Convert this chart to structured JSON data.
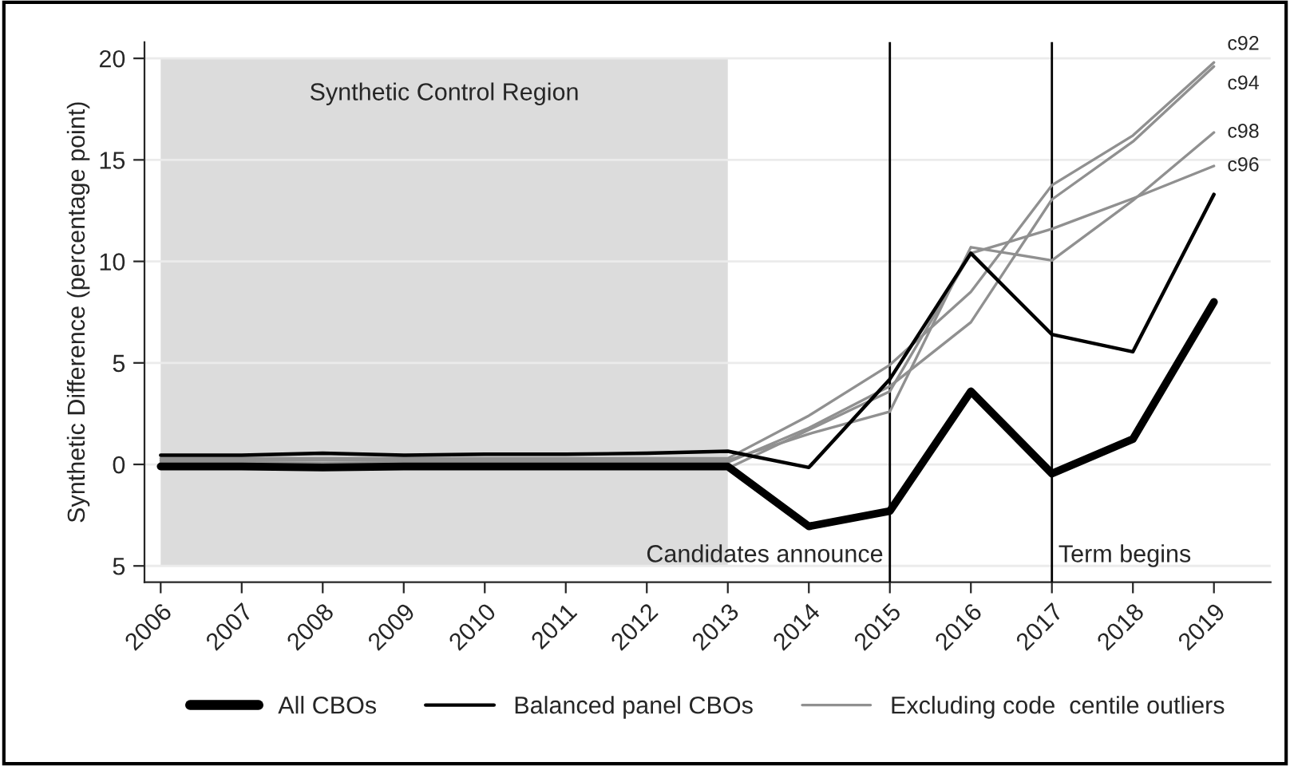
{
  "chart_data": {
    "type": "line",
    "ylabel": "Synthetic Difference (percentage point)",
    "x": [
      2006,
      2007,
      2008,
      2009,
      2010,
      2011,
      2012,
      2013,
      2014,
      2015,
      2016,
      2017,
      2018,
      2019
    ],
    "xlim": [
      2005.8,
      2019.7
    ],
    "xticks": [
      2006,
      2007,
      2008,
      2009,
      2010,
      2011,
      2012,
      2013,
      2014,
      2015,
      2016,
      2017,
      2018,
      2019
    ],
    "ylim": [
      -5.8,
      20.8
    ],
    "yticks": [
      {
        "value": -5,
        "label": "5"
      },
      0,
      5,
      10,
      15,
      20
    ],
    "grid": "y",
    "legend": "bottom",
    "series": [
      {
        "name": "All CBOs",
        "color": "#000000",
        "values": [
          -0.1,
          -0.1,
          -0.15,
          -0.1,
          -0.1,
          -0.1,
          -0.1,
          -0.1,
          -3.05,
          -2.3,
          3.6,
          -0.45,
          1.25,
          8.0
        ]
      },
      {
        "name": "Balanced panel CBOs",
        "color": "#000000",
        "values": [
          0.45,
          0.45,
          0.55,
          0.45,
          0.5,
          0.5,
          0.55,
          0.65,
          -0.15,
          4.2,
          10.4,
          6.4,
          5.55,
          13.3
        ]
      },
      {
        "name": "c92",
        "color": "#909090",
        "values": [
          0.3,
          0.3,
          0.3,
          0.3,
          0.3,
          0.3,
          0.3,
          0.3,
          2.4,
          4.9,
          8.5,
          13.75,
          16.2,
          19.8
        ]
      },
      {
        "name": "c94",
        "color": "#909090",
        "values": [
          0.1,
          0.1,
          0.05,
          0.1,
          0.1,
          0.1,
          0.1,
          0.1,
          1.8,
          3.85,
          7.0,
          13.05,
          15.9,
          19.6
        ]
      },
      {
        "name": "c98",
        "color": "#909090",
        "values": [
          0.2,
          0.2,
          0.2,
          0.2,
          0.2,
          0.2,
          0.2,
          0.2,
          1.5,
          2.6,
          10.7,
          10.05,
          13.0,
          16.35
        ]
      },
      {
        "name": "c96",
        "color": "#909090",
        "values": [
          -0.2,
          -0.2,
          -0.25,
          -0.2,
          -0.2,
          -0.2,
          -0.2,
          -0.2,
          1.7,
          3.6,
          10.4,
          11.6,
          13.1,
          14.7
        ]
      }
    ],
    "bands": [
      {
        "axis": "x",
        "from": 2006,
        "to": 2013,
        "label": "Synthetic Control Region",
        "color": "#dcdcdc"
      }
    ],
    "ref_lines": [
      {
        "axis": "x",
        "value": 2015,
        "label": "Candidates announce",
        "color": "#000000"
      },
      {
        "axis": "x",
        "value": 2017,
        "label": "Term begins",
        "color": "#000000"
      }
    ],
    "annotations": [
      "Excluding code  centile outliers"
    ]
  }
}
